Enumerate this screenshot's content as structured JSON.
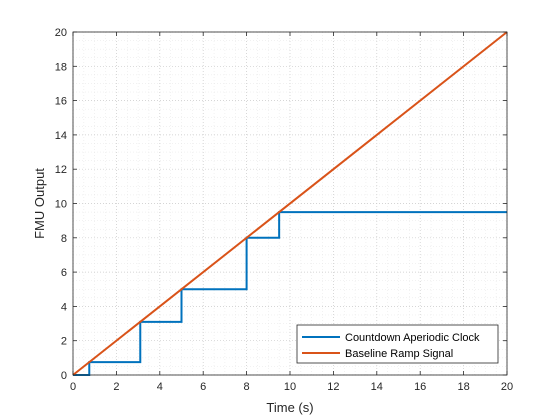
{
  "chart_data": {
    "type": "line",
    "title": "",
    "xlabel": "Time (s)",
    "ylabel": "FMU Output",
    "xlim": [
      0,
      20
    ],
    "ylim": [
      0,
      20
    ],
    "xticks": [
      0,
      2,
      4,
      6,
      8,
      10,
      12,
      14,
      16,
      18,
      20
    ],
    "yticks": [
      0,
      2,
      4,
      6,
      8,
      10,
      12,
      14,
      16,
      18,
      20
    ],
    "grid": "major and minor, dotted",
    "legend_position": "bottom-right",
    "series": [
      {
        "name": "Countdown Aperiodic Clock",
        "style": "stairs",
        "color": "#0072BD",
        "x": [
          0,
          0.75,
          3.1,
          5.0,
          8.0,
          9.5,
          20
        ],
        "y": [
          0,
          0.75,
          3.1,
          5.0,
          8.0,
          9.5,
          9.5
        ]
      },
      {
        "name": "Baseline Ramp Signal",
        "style": "line",
        "color": "#D95319",
        "x": [
          0,
          20
        ],
        "y": [
          0,
          20
        ]
      }
    ]
  }
}
